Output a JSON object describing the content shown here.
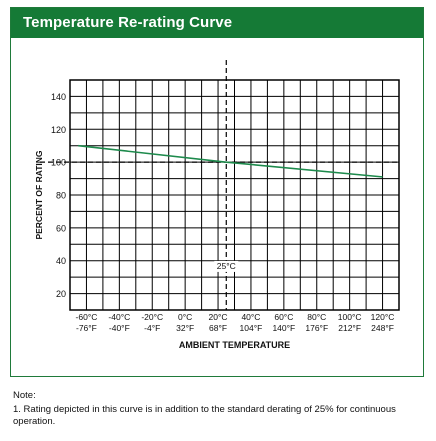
{
  "header": {
    "title": "Temperature Re-rating Curve"
  },
  "chart_data": {
    "type": "line",
    "title": "Temperature Re-rating Curve",
    "xlabel": "AMBIENT TEMPERATURE",
    "ylabel": "PERCENT OF RATING",
    "xlim": [
      -70,
      130
    ],
    "ylim": [
      10,
      150
    ],
    "yticks": [
      20,
      40,
      60,
      80,
      100,
      120,
      140
    ],
    "xticks": [
      {
        "value": -60,
        "label_c": "-60°C",
        "label_f": "-76°F"
      },
      {
        "value": -40,
        "label_c": "-40°C",
        "label_f": "-40°F"
      },
      {
        "value": -20,
        "label_c": "-20°C",
        "label_f": "-4°F"
      },
      {
        "value": 0,
        "label_c": "0°C",
        "label_f": "32°F"
      },
      {
        "value": 20,
        "label_c": "20°C",
        "label_f": "68°F"
      },
      {
        "value": 40,
        "label_c": "40°C",
        "label_f": "104°F"
      },
      {
        "value": 60,
        "label_c": "60°C",
        "label_f": "140°F"
      },
      {
        "value": 80,
        "label_c": "80°C",
        "label_f": "176°F"
      },
      {
        "value": 100,
        "label_c": "100°C",
        "label_f": "212°F"
      },
      {
        "value": 120,
        "label_c": "120°C",
        "label_f": "248°F"
      }
    ],
    "grid": true,
    "series": [
      {
        "x": [
          -65,
          25,
          120
        ],
        "y": [
          110,
          100,
          91
        ]
      }
    ],
    "reference_lines": {
      "horizontal": {
        "y": 100
      },
      "vertical": {
        "x": 25,
        "label": "25°C"
      }
    },
    "colors": {
      "line": "#1d8a4c",
      "grid": "#000000",
      "header": "#157a36"
    }
  },
  "note": {
    "label": "Note:",
    "text": "1. Rating depicted in this curve is in addition to the standard derating of 25% for continuous operation."
  }
}
